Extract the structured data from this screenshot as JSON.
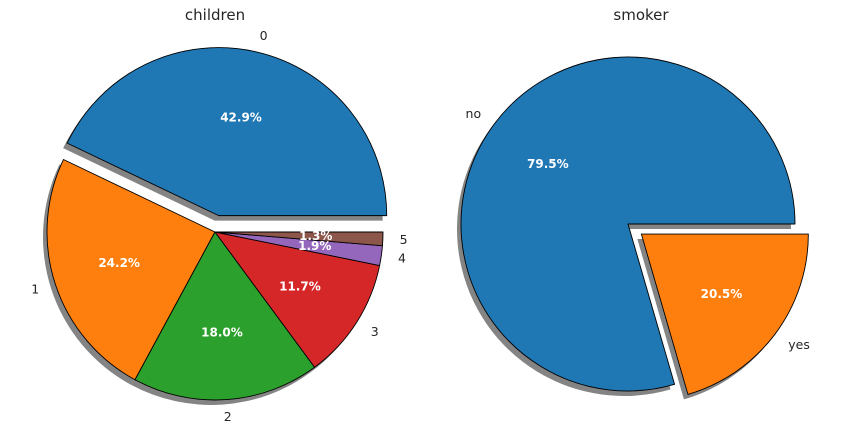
{
  "chart_data": [
    {
      "type": "pie",
      "title": "children",
      "categories": [
        "0",
        "1",
        "2",
        "3",
        "4",
        "5"
      ],
      "values": [
        42.9,
        24.2,
        18.0,
        11.7,
        1.9,
        1.3
      ],
      "percent_labels": [
        "42.9%",
        "24.2%",
        "18.0%",
        "11.7%",
        "1.9%",
        "1.3%"
      ],
      "colors": [
        "#1f77b4",
        "#ff7f0e",
        "#2ca02c",
        "#d62728",
        "#9467bd",
        "#8c564b"
      ],
      "exploded": [
        "0"
      ],
      "shadow": true,
      "start_angle_deg": 0,
      "direction": "counterclockwise"
    },
    {
      "type": "pie",
      "title": "smoker",
      "categories": [
        "no",
        "yes"
      ],
      "values": [
        79.5,
        20.5
      ],
      "percent_labels": [
        "79.5%",
        "20.5%"
      ],
      "colors": [
        "#1f77b4",
        "#ff7f0e"
      ],
      "exploded": [
        "yes"
      ],
      "shadow": true,
      "start_angle_deg": 0,
      "direction": "counterclockwise"
    }
  ]
}
